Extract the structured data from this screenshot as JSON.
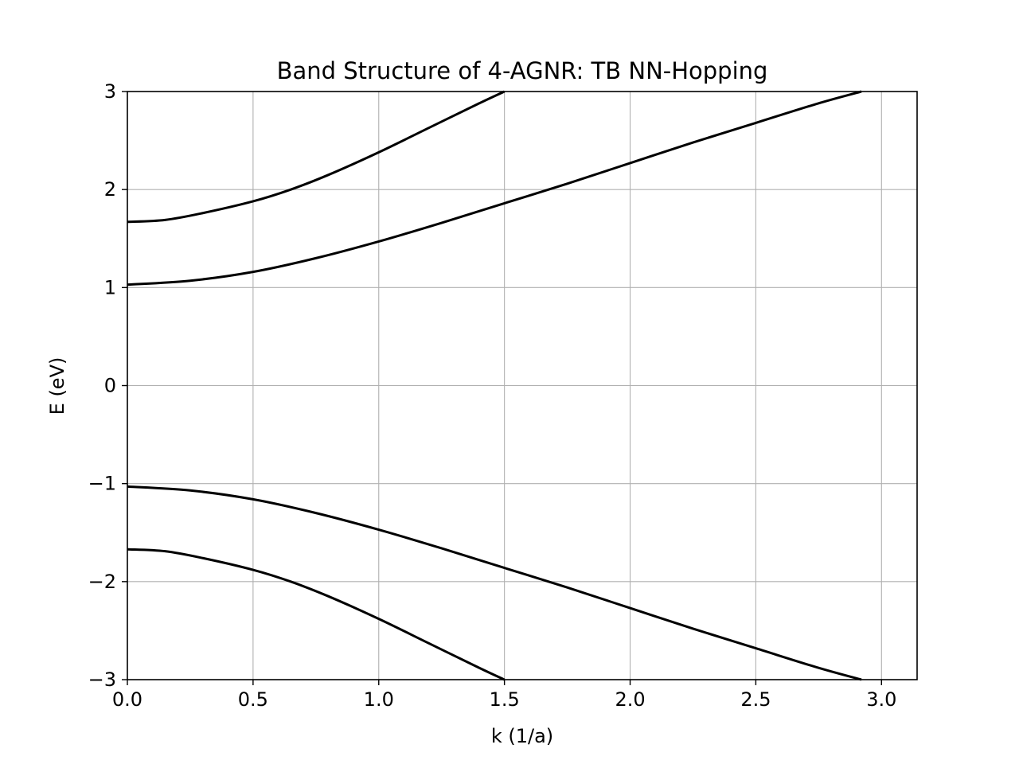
{
  "chart_data": {
    "type": "line",
    "title": "Band Structure of 4-AGNR: TB NN-Hopping",
    "xlabel": "k (1/a)",
    "ylabel": "E (eV)",
    "xlim": [
      0,
      3.1416
    ],
    "ylim": [
      -3,
      3
    ],
    "grid": true,
    "x_ticks": [
      0.0,
      0.5,
      1.0,
      1.5,
      2.0,
      2.5,
      3.0
    ],
    "x_tick_labels": [
      "0.0",
      "0.5",
      "1.0",
      "1.5",
      "2.0",
      "2.5",
      "3.0"
    ],
    "y_ticks": [
      -3,
      -2,
      -1,
      0,
      1,
      2,
      3
    ],
    "y_tick_labels": [
      "−3",
      "−2",
      "−1",
      "0",
      "1",
      "2",
      "3"
    ],
    "line_color": "#000000",
    "grid_color": "#b0b0b0",
    "series": [
      {
        "x": [
          0,
          0.25,
          0.5,
          0.75,
          1.0,
          1.25,
          1.5,
          1.75,
          2.0,
          2.25,
          2.5,
          2.75,
          2.92
        ],
        "values": [
          1.03,
          1.07,
          1.16,
          1.3,
          1.47,
          1.66,
          1.86,
          2.06,
          2.27,
          2.48,
          2.68,
          2.88,
          3.0
        ]
      },
      {
        "x": [
          0,
          0.15,
          0.3,
          0.5,
          0.65,
          0.8,
          1.0,
          1.2,
          1.4,
          1.5
        ],
        "values": [
          1.67,
          1.69,
          1.76,
          1.88,
          2.0,
          2.15,
          2.38,
          2.63,
          2.88,
          3.0
        ]
      },
      {
        "x": [
          0,
          0.25,
          0.5,
          0.75,
          1.0,
          1.25,
          1.5,
          1.75,
          2.0,
          2.25,
          2.5,
          2.75,
          2.92
        ],
        "values": [
          -1.03,
          -1.07,
          -1.16,
          -1.3,
          -1.47,
          -1.66,
          -1.86,
          -2.06,
          -2.27,
          -2.48,
          -2.68,
          -2.88,
          -3.0
        ]
      },
      {
        "x": [
          0,
          0.15,
          0.3,
          0.5,
          0.65,
          0.8,
          1.0,
          1.2,
          1.4,
          1.5
        ],
        "values": [
          -1.67,
          -1.69,
          -1.76,
          -1.88,
          -2.0,
          -2.15,
          -2.38,
          -2.63,
          -2.88,
          -3.0
        ]
      }
    ]
  }
}
